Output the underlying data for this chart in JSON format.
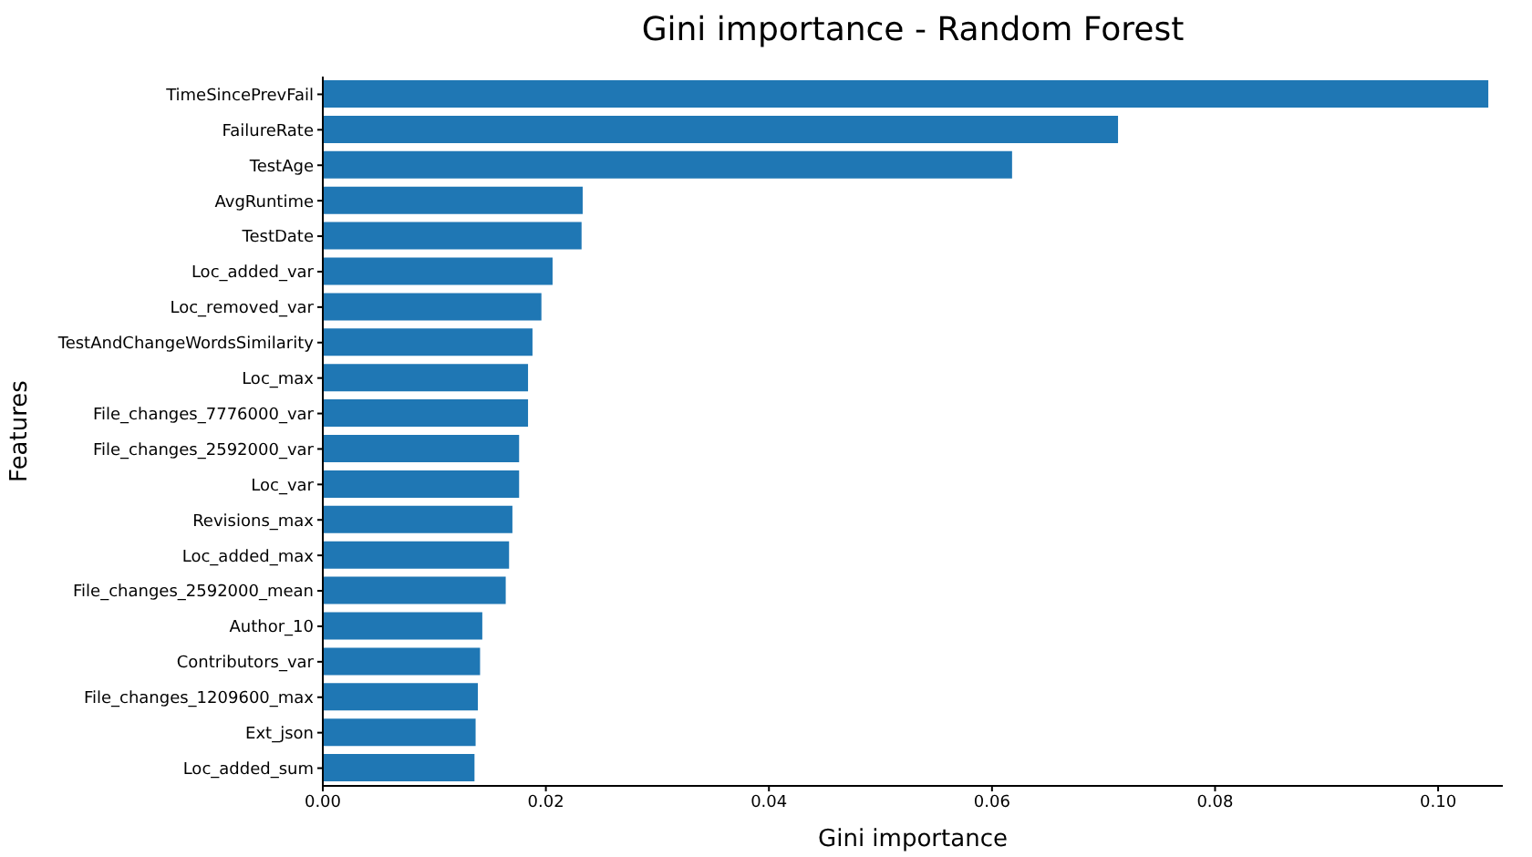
{
  "chart_data": {
    "type": "bar",
    "orientation": "horizontal",
    "title": "Gini importance - Random Forest",
    "xlabel": "Gini importance",
    "ylabel": "Features",
    "categories": [
      "TimeSincePrevFail",
      "FailureRate",
      "TestAge",
      "AvgRuntime",
      "TestDate",
      "Loc_added_var",
      "Loc_removed_var",
      "TestAndChangeWordsSimilarity",
      "Loc_max",
      "File_changes_7776000_var",
      "File_changes_2592000_var",
      "Loc_var",
      "Revisions_max",
      "Loc_added_max",
      "File_changes_2592000_mean",
      "Author_10",
      "Contributors_var",
      "File_changes_1209600_max",
      "Ext_json",
      "Loc_added_sum"
    ],
    "values": [
      0.1045,
      0.0713,
      0.0618,
      0.0233,
      0.0232,
      0.0206,
      0.0196,
      0.0188,
      0.0184,
      0.0184,
      0.0176,
      0.0176,
      0.017,
      0.0167,
      0.0164,
      0.0143,
      0.0141,
      0.0139,
      0.0137,
      0.0136
    ],
    "color": "#1f77b4",
    "xlim": [
      0,
      0.1058
    ],
    "xticks": [
      {
        "value": 0,
        "label": "0.00"
      },
      {
        "value": 0.02,
        "label": "0.02"
      },
      {
        "value": 0.04,
        "label": "0.04"
      },
      {
        "value": 0.06,
        "label": "0.06"
      },
      {
        "value": 0.08,
        "label": "0.08"
      },
      {
        "value": 0.1,
        "label": "0.10"
      }
    ],
    "grid": false,
    "legend": false
  }
}
